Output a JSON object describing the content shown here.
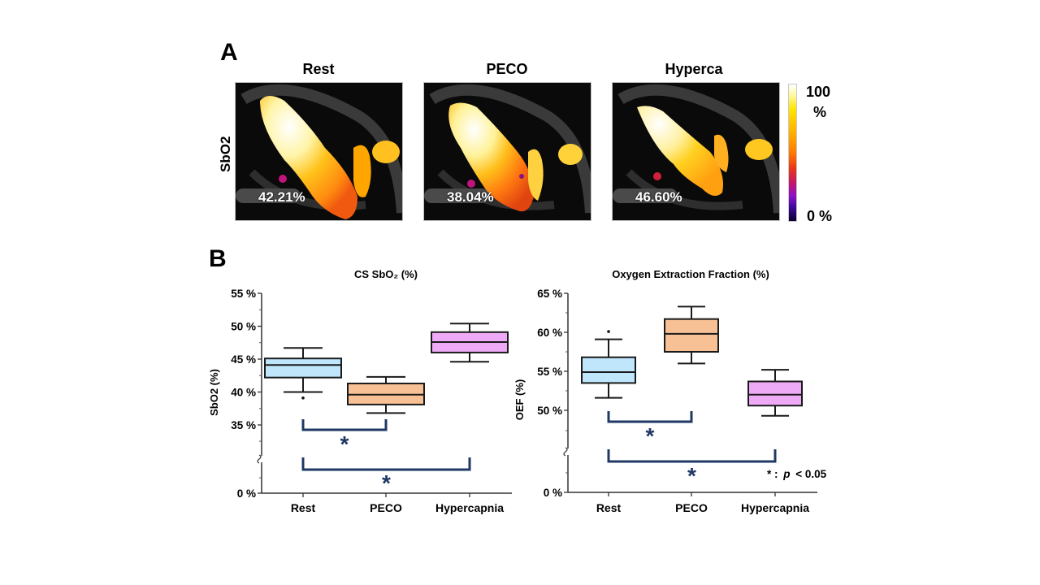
{
  "panel_a": {
    "letter": "A",
    "row_label": "SbO2",
    "row_label_hidden_unit": "(%)",
    "images": [
      {
        "title": "Rest",
        "value": "42.21%"
      },
      {
        "title": "PECO",
        "value": "38.04%"
      },
      {
        "title": "Hyperca",
        "value": "46.60%"
      }
    ],
    "colorbar": {
      "max_label": "100",
      "max_unit": "%",
      "min_label": "0 %",
      "colormap": "fire / hot (black-purple-red-orange-yellow-white)"
    }
  },
  "panel_b": {
    "letter": "B",
    "significance_note": {
      "star": "* :",
      "p": "p",
      "rest": "< 0.05"
    }
  },
  "chart_data": [
    {
      "type": "box",
      "title": "CS SbO₂ (%)",
      "xlabel": "",
      "ylabel": "SbO2 (%)",
      "categories": [
        "Rest",
        "PECO",
        "Hypercapnia"
      ],
      "colors": [
        "#bfe6fb",
        "#f8c195",
        "#eeaaf6"
      ],
      "ylim": [
        0,
        55
      ],
      "axis_break": [
        0,
        35
      ],
      "yticks": [
        0,
        35,
        40,
        45,
        50,
        55
      ],
      "ytick_labels": [
        "0 %",
        "35 %",
        "40 %",
        "45 %",
        "50 %",
        "55 %"
      ],
      "boxes": [
        {
          "category": "Rest",
          "whisker_low": 40.0,
          "q1": 42.2,
          "median": 44.1,
          "q3": 45.1,
          "whisker_high": 46.7,
          "outliers": [
            39.1
          ]
        },
        {
          "category": "PECO",
          "whisker_low": 36.8,
          "q1": 38.1,
          "median": 39.6,
          "q3": 41.3,
          "whisker_high": 42.3,
          "outliers": []
        },
        {
          "category": "Hypercapnia",
          "whisker_low": 44.6,
          "q1": 46.0,
          "median": 47.6,
          "q3": 49.1,
          "whisker_high": 50.4,
          "outliers": []
        }
      ],
      "significance": [
        {
          "from": "Rest",
          "to": "PECO",
          "label": "*"
        },
        {
          "from": "Rest",
          "to": "Hypercapnia",
          "label": "*"
        }
      ],
      "grid": false
    },
    {
      "type": "box",
      "title": "Oxygen Extraction Fraction (%)",
      "xlabel": "",
      "ylabel": "OEF (%)",
      "categories": [
        "Rest",
        "PECO",
        "Hypercapnia"
      ],
      "colors": [
        "#bfe6fb",
        "#f8c195",
        "#eeaaf6"
      ],
      "ylim": [
        0,
        65
      ],
      "axis_break": [
        0,
        50
      ],
      "yticks": [
        0,
        50,
        55,
        60,
        65
      ],
      "ytick_labels": [
        "0 %",
        "50 %",
        "55 %",
        "60 %",
        "65 %"
      ],
      "boxes": [
        {
          "category": "Rest",
          "whisker_low": 51.6,
          "q1": 53.5,
          "median": 54.9,
          "q3": 56.8,
          "whisker_high": 59.1,
          "outliers": [
            60.1
          ]
        },
        {
          "category": "PECO",
          "whisker_low": 56.0,
          "q1": 57.5,
          "median": 59.8,
          "q3": 61.7,
          "whisker_high": 63.3,
          "outliers": []
        },
        {
          "category": "Hypercapnia",
          "whisker_low": 49.3,
          "q1": 50.6,
          "median": 52.0,
          "q3": 53.7,
          "whisker_high": 55.2,
          "outliers": []
        }
      ],
      "significance": [
        {
          "from": "Rest",
          "to": "PECO",
          "label": "*"
        },
        {
          "from": "Rest",
          "to": "Hypercapnia",
          "label": "*"
        }
      ],
      "annotation": "* : p < 0.05",
      "grid": false
    }
  ],
  "style": {
    "bracket_color": "#1f3864",
    "box_stroke": "#1a1a1a"
  }
}
